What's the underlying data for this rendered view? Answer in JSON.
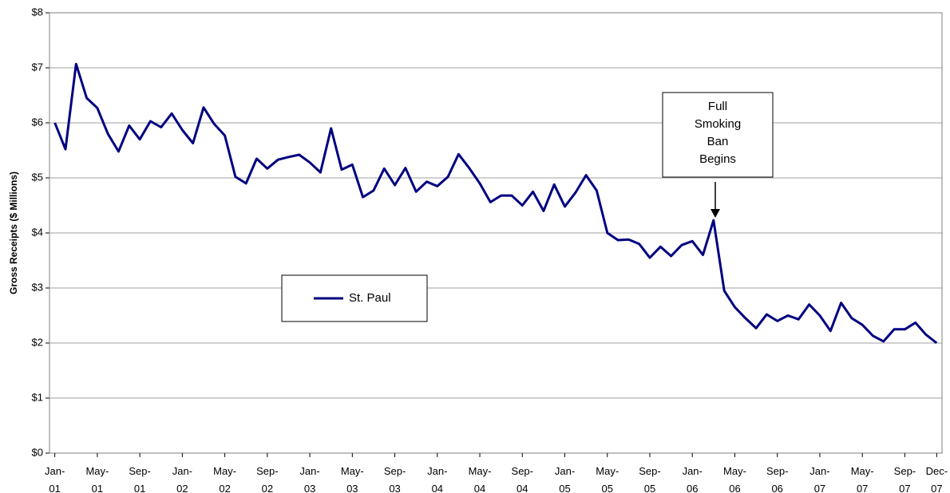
{
  "chart_data": {
    "type": "line",
    "y_label": "Gross Receipts ($ Millions)",
    "categories": [
      "Jan-01",
      null,
      null,
      null,
      "May-01",
      null,
      null,
      null,
      "Sep-01",
      null,
      null,
      null,
      "Jan-02",
      null,
      null,
      null,
      "May-02",
      null,
      null,
      null,
      "Sep-02",
      null,
      null,
      null,
      "Jan-03",
      null,
      null,
      null,
      "May-03",
      null,
      null,
      null,
      "Sep-03",
      null,
      null,
      null,
      "Jan-04",
      null,
      null,
      null,
      "May-04",
      null,
      null,
      null,
      "Sep-04",
      null,
      null,
      null,
      "Jan-05",
      null,
      null,
      null,
      "May-05",
      null,
      null,
      null,
      "Sep-05",
      null,
      null,
      null,
      "Jan-06",
      null,
      null,
      null,
      "May-06",
      null,
      null,
      null,
      "Sep-06",
      null,
      null,
      null,
      "Jan-07",
      null,
      null,
      null,
      "May-07",
      null,
      null,
      null,
      "Sep-07",
      null,
      null,
      "Dec-07"
    ],
    "series": [
      {
        "name": "St. Paul",
        "color": "#000080",
        "values": [
          6.0,
          5.52,
          7.07,
          6.45,
          6.27,
          5.8,
          5.48,
          5.95,
          5.7,
          6.03,
          5.92,
          6.17,
          5.87,
          5.63,
          6.28,
          5.98,
          5.77,
          5.02,
          4.9,
          5.35,
          5.17,
          5.33,
          5.38,
          5.42,
          5.28,
          5.1,
          5.9,
          5.15,
          5.24,
          4.65,
          4.77,
          5.17,
          4.87,
          5.18,
          4.75,
          4.93,
          4.85,
          5.02,
          5.43,
          5.18,
          4.9,
          4.56,
          4.68,
          4.68,
          4.5,
          4.75,
          4.4,
          4.88,
          4.48,
          4.73,
          5.05,
          4.77,
          4.0,
          3.87,
          3.88,
          3.8,
          3.55,
          3.75,
          3.58,
          3.78,
          3.85,
          3.6,
          4.23,
          2.95,
          2.65,
          2.45,
          2.27,
          2.52,
          2.4,
          2.5,
          2.43,
          2.7,
          2.5,
          2.22,
          2.73,
          2.45,
          2.33,
          2.13,
          2.03,
          2.25,
          2.25,
          2.37,
          2.15,
          2.0
        ]
      }
    ],
    "ylim": [
      0,
      8
    ],
    "yticks": [
      {
        "value": 0,
        "label": "$0"
      },
      {
        "value": 1,
        "label": "$1"
      },
      {
        "value": 2,
        "label": "$2"
      },
      {
        "value": 3,
        "label": "$3"
      },
      {
        "value": 4,
        "label": "$4"
      },
      {
        "value": 5,
        "label": "$5"
      },
      {
        "value": 6,
        "label": "$6"
      },
      {
        "value": 7,
        "label": "$7"
      },
      {
        "value": 8,
        "label": "$8"
      }
    ],
    "grid": true,
    "annotation": [
      "Full",
      "Smoking",
      "Ban",
      "Begins"
    ]
  }
}
